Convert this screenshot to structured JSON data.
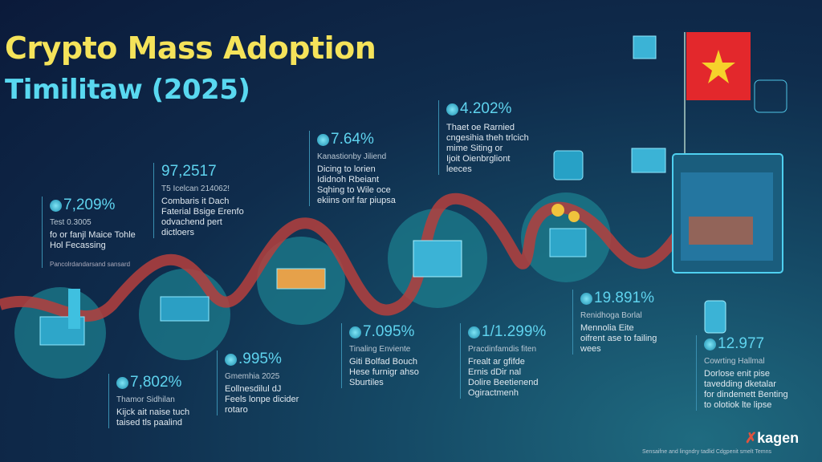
{
  "title": {
    "line1": "Crypto  Mass Adoption",
    "line2": "Timilitaw (2025)"
  },
  "colors": {
    "title_yellow": "#f5e35a",
    "title_cyan": "#59d8f0",
    "wave": "#b5403d",
    "flag_red": "#e3282c",
    "flag_star": "#f6d22b"
  },
  "stats": [
    {
      "value": "7,209%",
      "icon": "coin-icon",
      "sub": "Test 0.3005",
      "lines": [
        "fo or fanjl Maice Tohle",
        "Hol Fecassing"
      ],
      "foot": "Pancolrdandarsand sansard"
    },
    {
      "value": "97,2517",
      "icon": "",
      "sub": "T5 Icelcan 214062!",
      "lines": [
        "Combaris it Dach",
        "Faterial Bsige Erenfo",
        "odvachend pert",
        "dictloers"
      ]
    },
    {
      "value": "7.64%",
      "icon": "coin-icon",
      "sub": "Kanastionby Jiliend",
      "lines": [
        "Dicing to lorien",
        "Ididnoh Rbeiant",
        "Sqhing to Wile oce",
        "ekiins onf far piupsa"
      ]
    },
    {
      "value": "4.202%",
      "icon": "coin-icon",
      "sub": "",
      "lines": [
        "Thaet oe Rarnied",
        "cngesihia theh trlcich",
        "mime Siting or",
        "Ijoit Oienbrgliont",
        "leeces"
      ]
    },
    {
      "value": "7,802%",
      "icon": "coin-icon",
      "sub": "Thamor Sidhilan",
      "lines": [
        "Kijck ait naise tuch",
        "taised tls paalind"
      ]
    },
    {
      "value": ".995%",
      "icon": "coin-icon",
      "sub": "Gmemhia 2025",
      "lines": [
        "Eollnesdilul dJ",
        "Feels lonpe dicider",
        "rotaro"
      ]
    },
    {
      "value": "7.095%",
      "icon": "coin-icon",
      "sub": "Tinaling Enviente",
      "lines": [
        "Giti Bolfad Bouch",
        "Hese furnigr ahso",
        "Sburtiles"
      ]
    },
    {
      "value": "1/1.299%",
      "icon": "coin-icon",
      "sub": "Pracdinfamdis fiten",
      "lines": [
        "Frealt ar gfifde",
        "Ernis dDir nal",
        "Dolire Beetienend",
        "Ogiractmenh"
      ]
    },
    {
      "value": "19.891%",
      "icon": "coin-icon",
      "sub": "Renidhoga Borlal",
      "lines": [
        "Mennolia Eite",
        "oifrent ase to failing",
        "wees"
      ]
    },
    {
      "value": "12.977",
      "icon": "coin-icon",
      "sub": "Cowrting Hallmal",
      "lines": [
        "Dorlose enit pise",
        "tavedding dketalar",
        "for dindemett Benting",
        "to olotiok lte lipse"
      ]
    }
  ],
  "logo": {
    "text": "kagen"
  },
  "footer": "Sensaifne and lingndry tadlid Cdgpenit smelt Temns"
}
